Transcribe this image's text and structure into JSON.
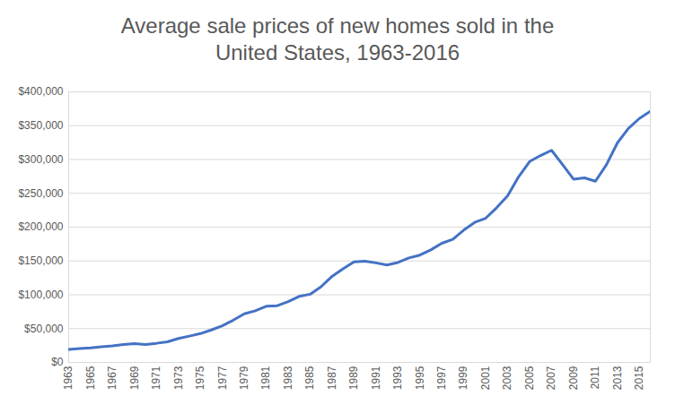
{
  "chart_data": {
    "type": "line",
    "title": "Average sale prices of new homes sold in the United States, 1963-2016",
    "x": [
      1963,
      1964,
      1965,
      1966,
      1967,
      1968,
      1969,
      1970,
      1971,
      1972,
      1973,
      1974,
      1975,
      1976,
      1977,
      1978,
      1979,
      1980,
      1981,
      1982,
      1983,
      1984,
      1985,
      1986,
      1987,
      1988,
      1989,
      1990,
      1991,
      1992,
      1993,
      1994,
      1995,
      1996,
      1997,
      1998,
      1999,
      2000,
      2001,
      2002,
      2003,
      2004,
      2005,
      2006,
      2007,
      2008,
      2009,
      2010,
      2011,
      2012,
      2013,
      2014,
      2015,
      2016
    ],
    "values": [
      19300,
      20500,
      21500,
      23300,
      24600,
      26600,
      27900,
      26600,
      28300,
      30500,
      35500,
      38900,
      42600,
      48000,
      54200,
      62500,
      71800,
      76400,
      83000,
      83900,
      89800,
      97600,
      100800,
      111900,
      127200,
      138300,
      148800,
      149800,
      147200,
      144100,
      147700,
      154500,
      158700,
      166400,
      176200,
      181900,
      195600,
      207000,
      213200,
      228700,
      246300,
      274500,
      297000,
      305900,
      313600,
      292600,
      270900,
      272900,
      267900,
      292200,
      324500,
      345800,
      360600,
      371200
    ],
    "color": "#4472c4",
    "xlim": [
      1963,
      2016
    ],
    "xticks": [
      1963,
      1965,
      1967,
      1969,
      1971,
      1973,
      1975,
      1977,
      1979,
      1981,
      1983,
      1985,
      1987,
      1989,
      1991,
      1993,
      1995,
      1997,
      1999,
      2001,
      2003,
      2005,
      2007,
      2009,
      2011,
      2013,
      2015
    ],
    "ylim": [
      0,
      400000
    ],
    "yticks": [
      {
        "value": 0,
        "label": "$0"
      },
      {
        "value": 50000,
        "label": "$50,000"
      },
      {
        "value": 100000,
        "label": "$100,000"
      },
      {
        "value": 150000,
        "label": "$150,000"
      },
      {
        "value": 200000,
        "label": "$200,000"
      },
      {
        "value": 250000,
        "label": "$250,000"
      },
      {
        "value": 300000,
        "label": "$300,000"
      },
      {
        "value": 350000,
        "label": "$350,000"
      },
      {
        "value": 400000,
        "label": "$400,000"
      }
    ],
    "grid": true
  }
}
